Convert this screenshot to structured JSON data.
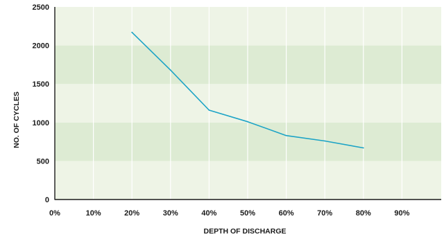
{
  "chart_data": {
    "type": "line",
    "title": "",
    "xlabel": "DEPTH OF DISCHARGE",
    "ylabel": "NO. OF CYCLES",
    "x_ticks": [
      "0%",
      "10%",
      "20%",
      "30%",
      "40%",
      "50%",
      "60%",
      "70%",
      "80%",
      "90%"
    ],
    "y_ticks": [
      "0",
      "500",
      "1000",
      "1500",
      "2000",
      "2500"
    ],
    "xlim": [
      0,
      100
    ],
    "ylim": [
      0,
      2500
    ],
    "grid": true,
    "series": [
      {
        "x": [
          20,
          30,
          40,
          50,
          60,
          70,
          80
        ],
        "y": [
          2170,
          1680,
          1160,
          1010,
          830,
          760,
          670
        ]
      }
    ],
    "colors": {
      "line": "#1ba3c6",
      "band_light": "#eef4e6",
      "band_dark": "#ddebd3",
      "gridline": "#ffffff",
      "axis": "#1a1a1a"
    }
  }
}
